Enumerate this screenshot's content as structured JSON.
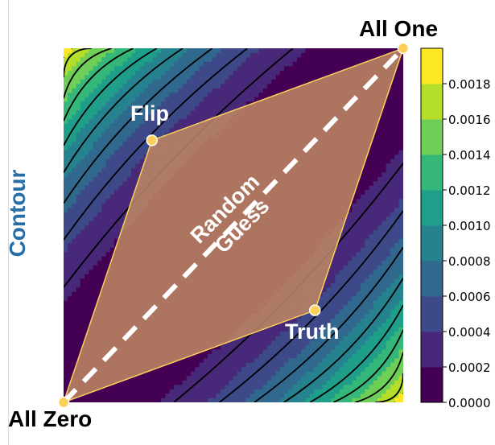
{
  "row_label": "Contour",
  "chart_data": {
    "type": "heatmap",
    "subtype": "filled-contour",
    "xlim": [
      0,
      1
    ],
    "ylim": [
      0,
      1
    ],
    "colormap": [
      "#440154",
      "#482878",
      "#3e4989",
      "#31688e",
      "#26828e",
      "#1f9e89",
      "#35b779",
      "#6ece58",
      "#b5de2b",
      "#fde725"
    ],
    "colorbar": {
      "ticks": [
        "0.0000",
        "0.0002",
        "0.0004",
        "0.0006",
        "0.0008",
        "0.0010",
        "0.0012",
        "0.0014",
        "0.0016",
        "0.0018"
      ],
      "range": [
        0,
        0.0018
      ]
    },
    "points": [
      {
        "name": "All Zero",
        "x": 0.0,
        "y": 0.0
      },
      {
        "name": "All One",
        "x": 1.0,
        "y": 1.0
      },
      {
        "name": "Flip",
        "x": 0.26,
        "y": 0.74
      },
      {
        "name": "Truth",
        "x": 0.74,
        "y": 0.26
      }
    ],
    "polygon_order": [
      "All Zero",
      "Flip",
      "All One",
      "Truth"
    ],
    "polygon_color": "#c08a63",
    "dashed_line": {
      "label": [
        "Random",
        "Guess"
      ],
      "from": "All Zero",
      "to": "All One",
      "color": "#ffffff"
    },
    "point_color": "#fbd05a",
    "axes_visible": false
  }
}
